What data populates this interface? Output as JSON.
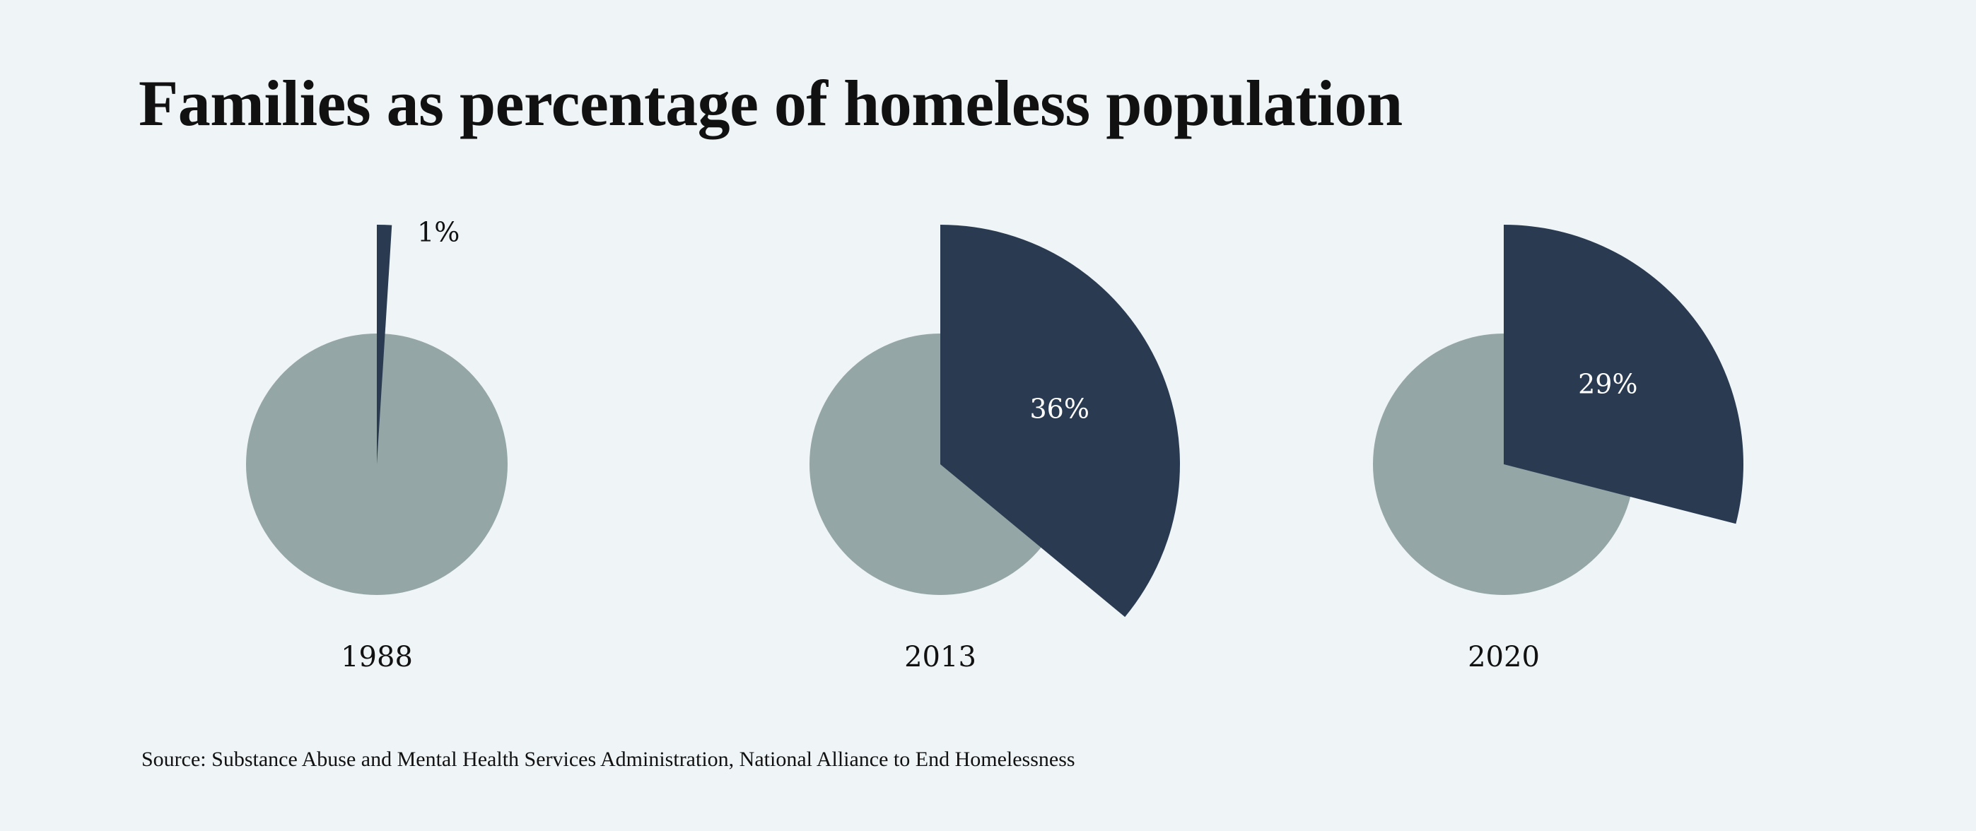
{
  "chart_data": {
    "type": "pie",
    "title": "Families as percentage of homeless population",
    "colors": {
      "families": "#2a3b51",
      "other": "#94a6a6",
      "background": "#eff4f7",
      "label_light": "#ffffff",
      "label_dark": "#111111"
    },
    "pies": [
      {
        "year": "1988",
        "value": 1,
        "label": "1%"
      },
      {
        "year": "2013",
        "value": 36,
        "label": "36%"
      },
      {
        "year": "2020",
        "value": 29,
        "label": "29%"
      }
    ]
  },
  "source": "Source: Substance Abuse and Mental Health Services Administration, National Alliance to End Homelessness"
}
